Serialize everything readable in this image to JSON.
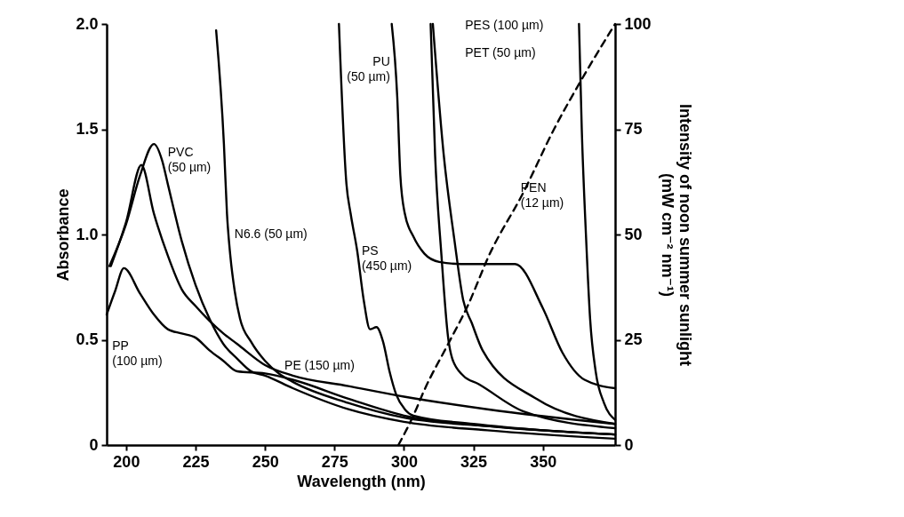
{
  "chart_data": {
    "type": "line",
    "xlabel": "Wavelength (nm)",
    "ylabel": "Absorbance",
    "y2label": "Intensity of noon summer sunlight (mW cm⁻² nm⁻¹)",
    "xlim": [
      193,
      376
    ],
    "xticks": [
      200,
      225,
      250,
      275,
      300,
      325,
      350
    ],
    "ylim": [
      0,
      2
    ],
    "yticks": [
      0,
      {
        "value": 0.5,
        "label": "0.5"
      },
      {
        "value": 1,
        "label": "1.0"
      },
      {
        "value": 1.5,
        "label": "1.5"
      },
      {
        "value": 2,
        "label": "2.0"
      }
    ],
    "y2lim": [
      0,
      100
    ],
    "y2ticks": [
      0,
      25,
      50,
      75,
      100
    ],
    "line_style": "solid",
    "series": [
      {
        "name": "PVC (50 µm)",
        "color": "#000000",
        "x": [
          194,
          200,
          205,
          210,
          213,
          215,
          220,
          225,
          230,
          235,
          240,
          245,
          250,
          260,
          280,
          300,
          330,
          376
        ],
        "values": [
          0.85,
          1.05,
          1.28,
          1.43,
          1.35,
          1.24,
          0.97,
          0.76,
          0.6,
          0.48,
          0.41,
          0.35,
          0.33,
          0.27,
          0.17,
          0.11,
          0.07,
          0.03
        ]
      },
      {
        "name": "N6.6 (50 µm)",
        "color": "#000000",
        "x": [
          232.4,
          235.2,
          236.3,
          237.5,
          239.1,
          241,
          245,
          250,
          255,
          260,
          280,
          300,
          330,
          376
        ],
        "values": [
          1.97,
          1.43,
          1.1,
          0.9,
          0.73,
          0.6,
          0.49,
          0.4,
          0.34,
          0.3,
          0.2,
          0.13,
          0.09,
          0.05
        ]
      },
      {
        "name": "PE (150 µm)",
        "color": "#000000",
        "x": [
          194.5,
          200,
          205.5,
          210,
          215,
          220,
          225,
          230,
          235,
          240,
          250,
          260,
          280,
          300,
          330,
          376
        ],
        "values": [
          0.85,
          1.06,
          1.33,
          1.1,
          0.9,
          0.74,
          0.66,
          0.59,
          0.53,
          0.48,
          0.38,
          0.33,
          0.28,
          0.23,
          0.17,
          0.1
        ]
      },
      {
        "name": "PP (100 µm)",
        "color": "#000000",
        "x": [
          193,
          196,
          199.2,
          205,
          210,
          215,
          220,
          225,
          230,
          235,
          240,
          250,
          260,
          280,
          300,
          330,
          376
        ],
        "values": [
          0.62,
          0.73,
          0.84,
          0.72,
          0.62,
          0.55,
          0.53,
          0.51,
          0.45,
          0.4,
          0.35,
          0.34,
          0.31,
          0.22,
          0.14,
          0.09,
          0.05
        ]
      },
      {
        "name": "PS (450 µm)",
        "color": "#000000",
        "x": [
          276.6,
          279.3,
          280.8,
          283.2,
          285.5,
          287.8,
          290.1,
          292.5,
          294.8,
          297.2,
          300.3,
          303.4,
          325,
          350,
          376
        ],
        "values": [
          2.0,
          1.24,
          1.1,
          0.92,
          0.69,
          0.55,
          0.56,
          0.49,
          0.35,
          0.24,
          0.17,
          0.14,
          0.1,
          0.07,
          0.05
        ]
      },
      {
        "name": "PU (50 µm)",
        "color": "#000000",
        "x": [
          295.6,
          297.6,
          298.7,
          300.3,
          303.4,
          307.3,
          312.7,
          320.5,
          340,
          350,
          357,
          365,
          376
        ],
        "values": [
          2.0,
          1.65,
          1.28,
          1.1,
          0.99,
          0.91,
          0.87,
          0.86,
          0.86,
          0.65,
          0.44,
          0.31,
          0.27
        ]
      },
      {
        "name": "PES (100 µm)",
        "color": "#000000",
        "x": [
          309.6,
          311.2,
          313.5,
          315.9,
          317.4,
          321.3,
          326.8,
          343,
          376
        ],
        "values": [
          2.0,
          1.38,
          0.9,
          0.51,
          0.41,
          0.33,
          0.29,
          0.16,
          0.08
        ]
      },
      {
        "name": "PET (50 µm)",
        "color": "#000000",
        "x": [
          310.4,
          314.3,
          318.2,
          321.3,
          324.4,
          328.3,
          347.6,
          376
        ],
        "values": [
          2.0,
          1.38,
          0.97,
          0.69,
          0.58,
          0.45,
          0.22,
          0.1
        ]
      },
      {
        "name": "PEN (12 µm)",
        "color": "#000000",
        "x": [
          363,
          364,
          365.5,
          367,
          369,
          372,
          376
        ],
        "values": [
          2.0,
          1.5,
          1.0,
          0.6,
          0.35,
          0.2,
          0.12
        ]
      },
      {
        "color": "#000000",
        "axis": "y2",
        "line_style": "dashed",
        "x": [
          298,
          303.4,
          307.3,
          315.9,
          322.9,
          330.6,
          343,
          354,
          365,
          376
        ],
        "values": [
          0,
          7,
          13,
          24,
          33,
          45,
          60,
          75,
          88,
          100
        ]
      }
    ]
  }
}
